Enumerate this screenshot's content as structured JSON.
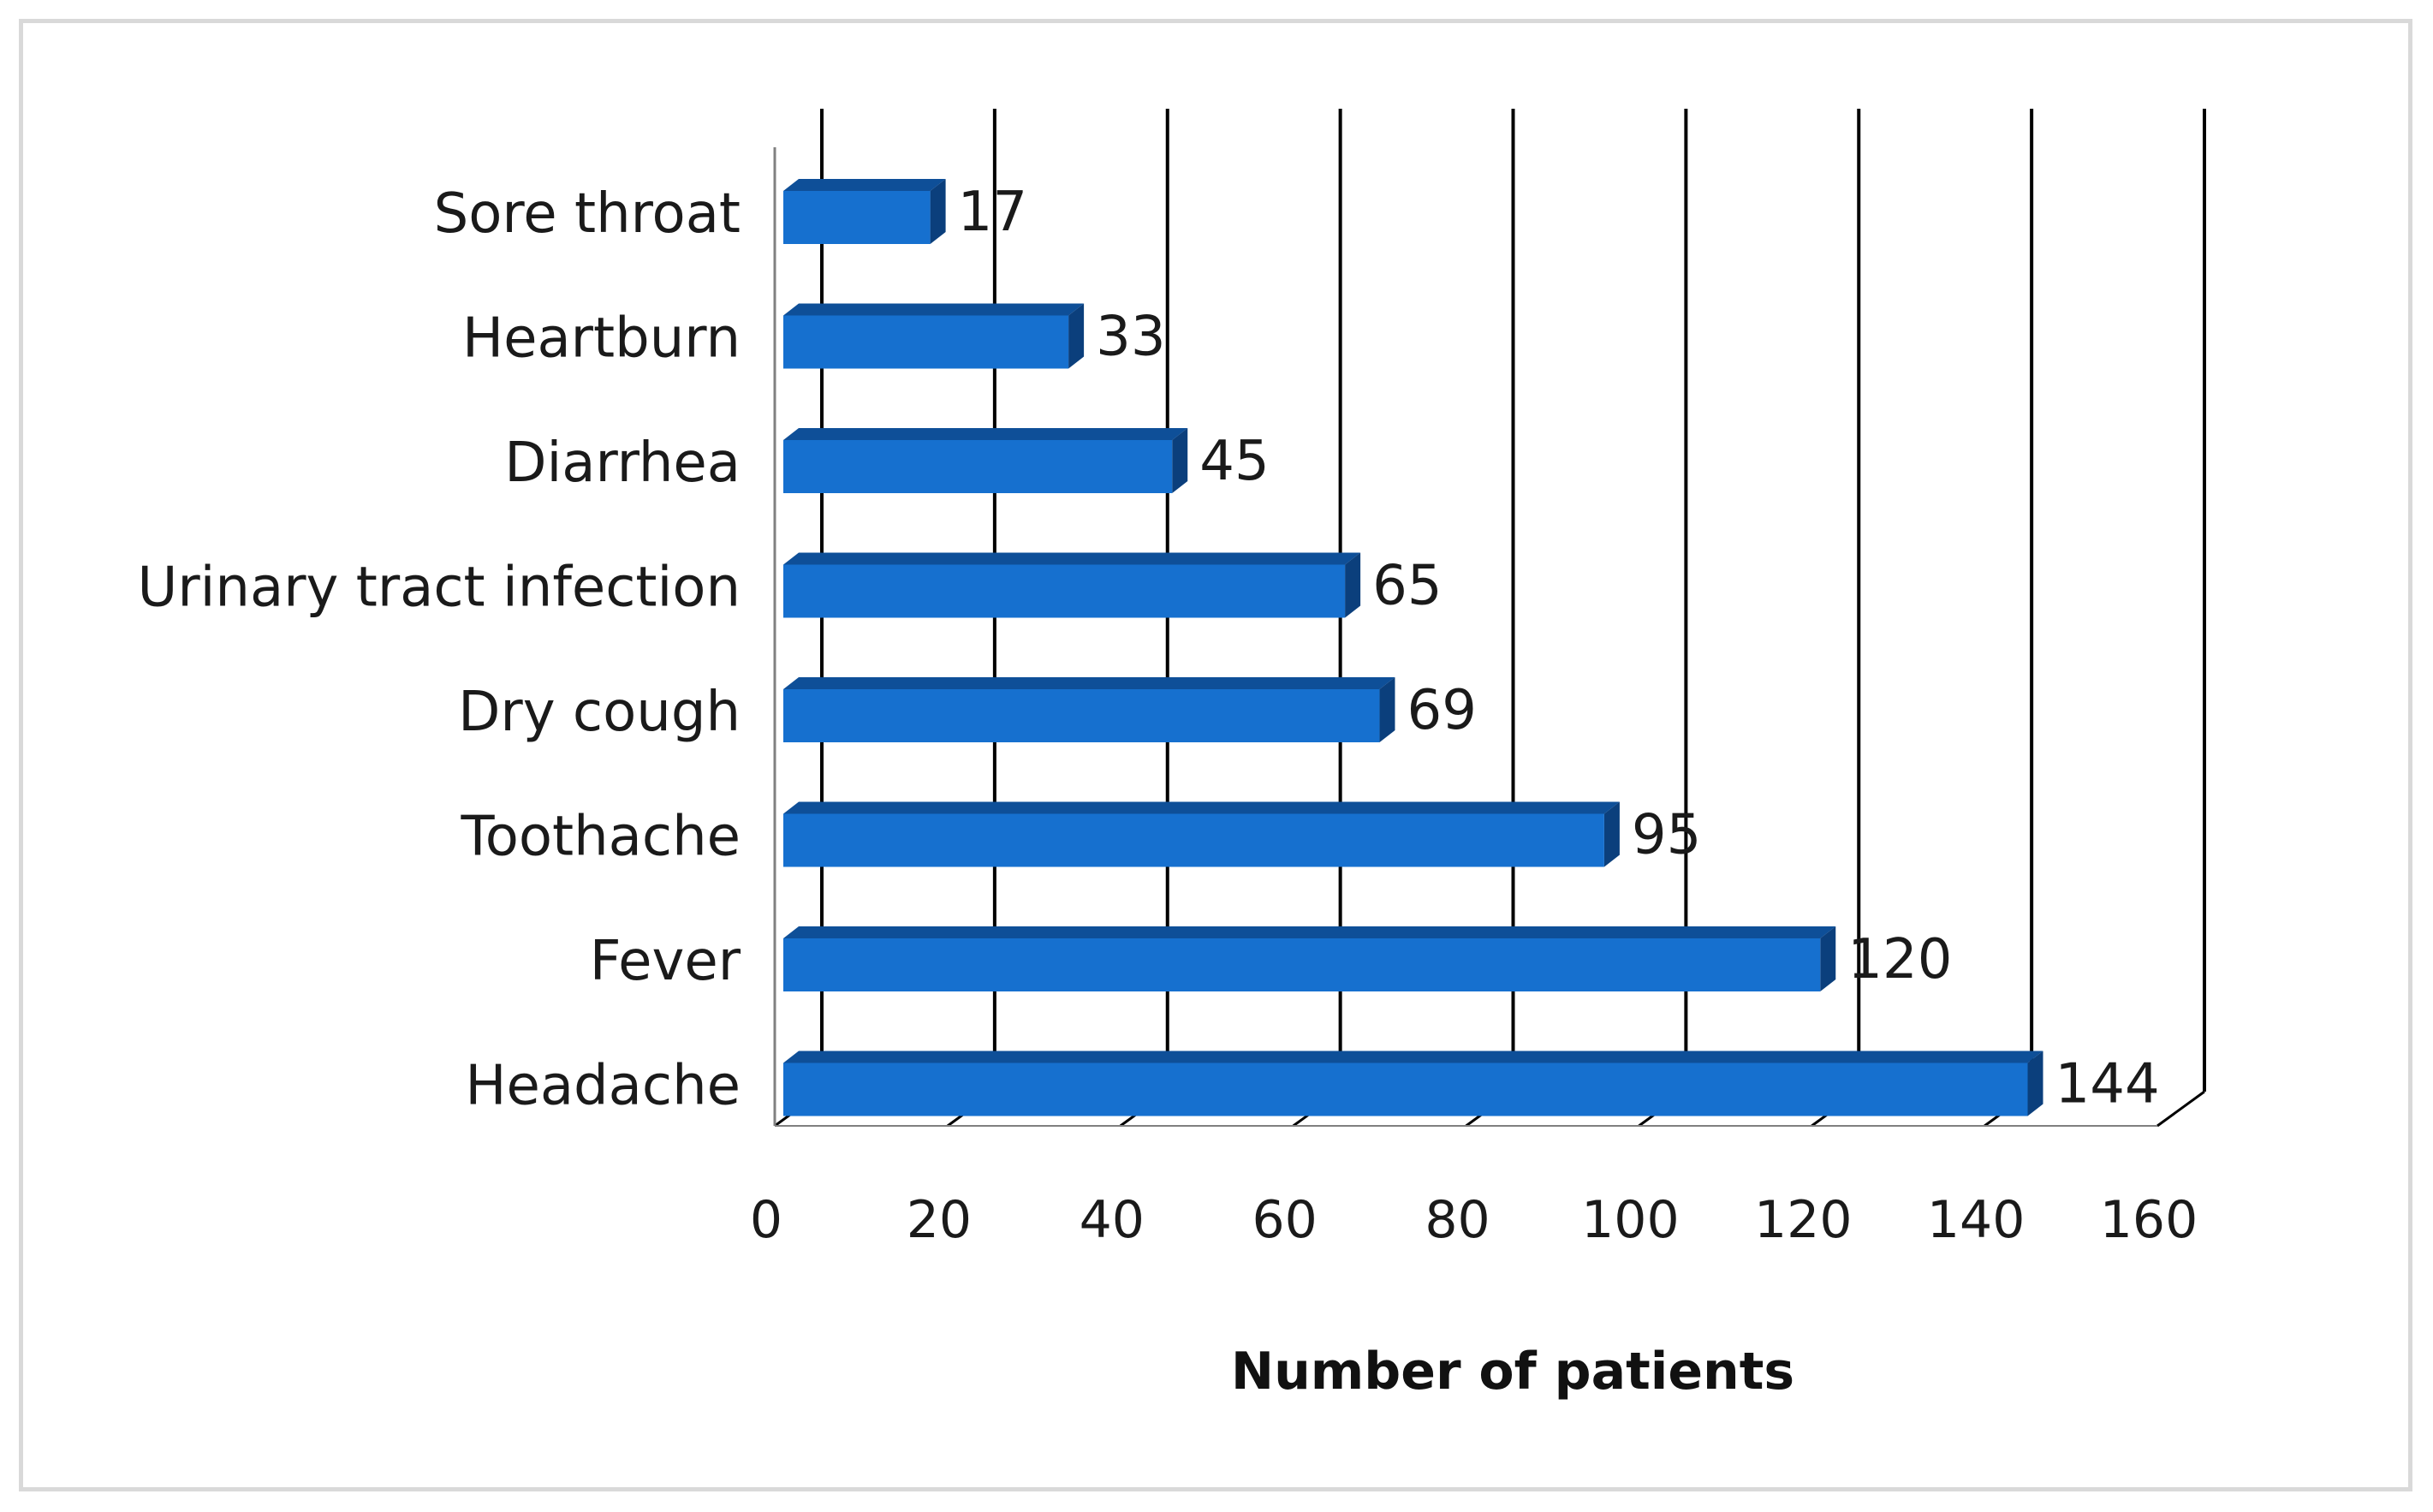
{
  "chart_data": {
    "type": "bar",
    "orientation": "horizontal",
    "style": "3d",
    "categories": [
      "Sore throat",
      "Heartburn",
      "Diarrhea",
      "Urinary tract infection",
      "Dry cough",
      "Toothache",
      "Fever",
      "Headache"
    ],
    "values": [
      17,
      33,
      45,
      65,
      69,
      95,
      120,
      144
    ],
    "title": "",
    "xlabel": "Number of patients",
    "ylabel": "",
    "xlim": [
      0,
      160
    ],
    "xticks": [
      0,
      20,
      40,
      60,
      80,
      100,
      120,
      140,
      160
    ],
    "grid": "vertical",
    "data_labels": true,
    "bar_color": "#1670cf",
    "bar_top_color": "#0e4f98",
    "bar_side_color": "#0b3f7c",
    "grid_color": "#000000"
  }
}
